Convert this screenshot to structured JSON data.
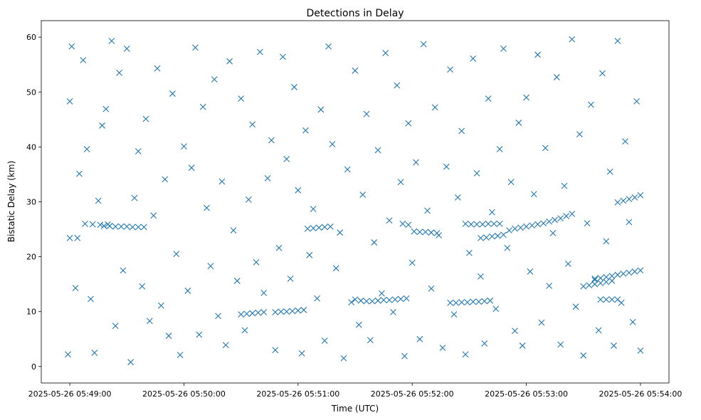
{
  "chart_data": {
    "type": "scatter",
    "title": "Detections in Delay",
    "xlabel": "Time (UTC)",
    "ylabel": "Bistatic Delay (km)",
    "x_start": "2025-05-26 05:49:00",
    "x_end": "2025-05-26 05:54:00",
    "xlim": [
      "2025-05-26 05:48:45",
      "2025-05-26 05:54:15"
    ],
    "ylim": [
      -3,
      63
    ],
    "x_ticks": [
      "2025-05-26 05:49:00",
      "2025-05-26 05:50:00",
      "2025-05-26 05:51:00",
      "2025-05-26 05:52:00",
      "2025-05-26 05:53:00",
      "2025-05-26 05:54:00"
    ],
    "y_ticks": [
      0,
      10,
      20,
      30,
      40,
      50,
      60
    ],
    "marker": "x",
    "color": "#1f77b4",
    "grid": false,
    "tracks": [
      {
        "x": [
          "2025-05-26 05:49:00",
          "2025-05-26 05:49:04",
          "2025-05-26 05:49:08",
          "2025-05-26 05:49:12",
          "2025-05-26 05:49:16",
          "2025-05-26 05:49:20"
        ],
        "y": [
          23.4,
          23.4,
          26.0,
          25.9,
          25.8,
          25.9
        ]
      },
      {
        "x": [
          "2025-05-26 05:49:18",
          "2025-05-26 05:49:21",
          "2025-05-26 05:49:24",
          "2025-05-26 05:49:27",
          "2025-05-26 05:49:30",
          "2025-05-26 05:49:33",
          "2025-05-26 05:49:36",
          "2025-05-26 05:49:39"
        ],
        "y": [
          25.6,
          25.6,
          25.5,
          25.5,
          25.5,
          25.4,
          25.4,
          25.4
        ]
      },
      {
        "x": [
          "2025-05-26 05:50:30",
          "2025-05-26 05:50:33",
          "2025-05-26 05:50:36",
          "2025-05-26 05:50:39",
          "2025-05-26 05:50:42"
        ],
        "y": [
          9.5,
          9.6,
          9.7,
          9.8,
          9.9
        ]
      },
      {
        "x": [
          "2025-05-26 05:50:48",
          "2025-05-26 05:50:51",
          "2025-05-26 05:50:54",
          "2025-05-26 05:50:57",
          "2025-05-26 05:51:00",
          "2025-05-26 05:51:03"
        ],
        "y": [
          9.9,
          10.0,
          10.0,
          10.1,
          10.2,
          10.3
        ]
      },
      {
        "x": [
          "2025-05-26 05:51:05",
          "2025-05-26 05:51:08",
          "2025-05-26 05:51:11",
          "2025-05-26 05:51:14",
          "2025-05-26 05:51:17"
        ],
        "y": [
          25.1,
          25.2,
          25.3,
          25.4,
          25.5
        ]
      },
      {
        "x": [
          "2025-05-26 05:51:30",
          "2025-05-26 05:51:33",
          "2025-05-26 05:51:36",
          "2025-05-26 05:51:39",
          "2025-05-26 05:51:42",
          "2025-05-26 05:51:45",
          "2025-05-26 05:51:48",
          "2025-05-26 05:51:51",
          "2025-05-26 05:51:54",
          "2025-05-26 05:51:57"
        ],
        "y": [
          12.2,
          12.0,
          11.9,
          11.9,
          12.0,
          12.1,
          12.1,
          12.2,
          12.3,
          12.4
        ]
      },
      {
        "x": [
          "2025-05-26 05:51:55",
          "2025-05-26 05:51:58",
          "2025-05-26 05:52:01",
          "2025-05-26 05:52:04",
          "2025-05-26 05:52:07",
          "2025-05-26 05:52:10",
          "2025-05-26 05:52:13"
        ],
        "y": [
          26.0,
          25.8,
          24.6,
          24.5,
          24.5,
          24.4,
          24.3
        ]
      },
      {
        "x": [
          "2025-05-26 05:52:20",
          "2025-05-26 05:52:23",
          "2025-05-26 05:52:26",
          "2025-05-26 05:52:29",
          "2025-05-26 05:52:32",
          "2025-05-26 05:52:35",
          "2025-05-26 05:52:38",
          "2025-05-26 05:52:41"
        ],
        "y": [
          11.6,
          11.6,
          11.7,
          11.7,
          11.8,
          11.8,
          11.9,
          12.0
        ]
      },
      {
        "x": [
          "2025-05-26 05:52:28",
          "2025-05-26 05:52:31",
          "2025-05-26 05:52:34",
          "2025-05-26 05:52:37",
          "2025-05-26 05:52:40",
          "2025-05-26 05:52:43",
          "2025-05-26 05:52:46"
        ],
        "y": [
          26.0,
          25.9,
          25.9,
          25.9,
          26.0,
          26.0,
          26.0
        ]
      },
      {
        "x": [
          "2025-05-26 05:52:36",
          "2025-05-26 05:52:39",
          "2025-05-26 05:52:42",
          "2025-05-26 05:52:45",
          "2025-05-26 05:52:48"
        ],
        "y": [
          23.4,
          23.5,
          23.7,
          23.8,
          24.0
        ]
      },
      {
        "x": [
          "2025-05-26 05:52:51",
          "2025-05-26 05:52:54",
          "2025-05-26 05:52:57",
          "2025-05-26 05:53:00",
          "2025-05-26 05:53:03",
          "2025-05-26 05:53:06",
          "2025-05-26 05:53:09",
          "2025-05-26 05:53:12",
          "2025-05-26 05:53:15",
          "2025-05-26 05:53:18",
          "2025-05-26 05:53:21",
          "2025-05-26 05:53:24"
        ],
        "y": [
          24.8,
          25.1,
          25.3,
          25.5,
          25.7,
          25.9,
          26.1,
          26.4,
          26.7,
          27.0,
          27.4,
          27.8
        ]
      },
      {
        "x": [
          "2025-05-26 05:53:30",
          "2025-05-26 05:53:33",
          "2025-05-26 05:53:36",
          "2025-05-26 05:53:39",
          "2025-05-26 05:53:42",
          "2025-05-26 05:53:45"
        ],
        "y": [
          14.6,
          14.8,
          15.0,
          15.2,
          15.4,
          15.6
        ]
      },
      {
        "x": [
          "2025-05-26 05:53:48",
          "2025-05-26 05:53:51",
          "2025-05-26 05:53:54",
          "2025-05-26 05:53:57",
          "2025-05-26 05:54:00"
        ],
        "y": [
          29.9,
          30.2,
          30.5,
          30.8,
          31.2
        ]
      },
      {
        "x": [
          "2025-05-26 05:53:36",
          "2025-05-26 05:53:39",
          "2025-05-26 05:53:42",
          "2025-05-26 05:53:45",
          "2025-05-26 05:53:48",
          "2025-05-26 05:53:51",
          "2025-05-26 05:53:54",
          "2025-05-26 05:53:57",
          "2025-05-26 05:54:00"
        ],
        "y": [
          16.0,
          16.1,
          16.3,
          16.5,
          16.7,
          16.9,
          17.1,
          17.3,
          17.5
        ]
      },
      {
        "x": [
          "2025-05-26 05:53:39",
          "2025-05-26 05:53:42",
          "2025-05-26 05:53:45",
          "2025-05-26 05:53:48"
        ],
        "y": [
          12.2,
          12.2,
          12.2,
          12.2
        ]
      }
    ],
    "points": {
      "x": [
        "2025-05-26 05:48:59",
        "2025-05-26 05:49:00",
        "2025-05-26 05:49:01",
        "2025-05-26 05:49:03",
        "2025-05-26 05:49:05",
        "2025-05-26 05:49:07",
        "2025-05-26 05:49:09",
        "2025-05-26 05:49:11",
        "2025-05-26 05:49:13",
        "2025-05-26 05:49:15",
        "2025-05-26 05:49:17",
        "2025-05-26 05:49:19",
        "2025-05-26 05:49:22",
        "2025-05-26 05:49:24",
        "2025-05-26 05:49:26",
        "2025-05-26 05:49:28",
        "2025-05-26 05:49:30",
        "2025-05-26 05:49:32",
        "2025-05-26 05:49:34",
        "2025-05-26 05:49:36",
        "2025-05-26 05:49:38",
        "2025-05-26 05:49:40",
        "2025-05-26 05:49:42",
        "2025-05-26 05:49:44",
        "2025-05-26 05:49:46",
        "2025-05-26 05:49:48",
        "2025-05-26 05:49:50",
        "2025-05-26 05:49:52",
        "2025-05-26 05:49:54",
        "2025-05-26 05:49:56",
        "2025-05-26 05:49:58",
        "2025-05-26 05:50:00",
        "2025-05-26 05:50:02",
        "2025-05-26 05:50:04",
        "2025-05-26 05:50:06",
        "2025-05-26 05:50:08",
        "2025-05-26 05:50:10",
        "2025-05-26 05:50:12",
        "2025-05-26 05:50:14",
        "2025-05-26 05:50:16",
        "2025-05-26 05:50:18",
        "2025-05-26 05:50:20",
        "2025-05-26 05:50:22",
        "2025-05-26 05:50:24",
        "2025-05-26 05:50:26",
        "2025-05-26 05:50:28",
        "2025-05-26 05:50:30",
        "2025-05-26 05:50:32",
        "2025-05-26 05:50:34",
        "2025-05-26 05:50:36",
        "2025-05-26 05:50:38",
        "2025-05-26 05:50:40",
        "2025-05-26 05:50:42",
        "2025-05-26 05:50:44",
        "2025-05-26 05:50:46",
        "2025-05-26 05:50:48",
        "2025-05-26 05:50:50",
        "2025-05-26 05:50:52",
        "2025-05-26 05:50:54",
        "2025-05-26 05:50:56",
        "2025-05-26 05:50:58",
        "2025-05-26 05:51:00",
        "2025-05-26 05:51:02",
        "2025-05-26 05:51:04",
        "2025-05-26 05:51:06",
        "2025-05-26 05:51:08",
        "2025-05-26 05:51:10",
        "2025-05-26 05:51:12",
        "2025-05-26 05:51:14",
        "2025-05-26 05:51:16",
        "2025-05-26 05:51:18",
        "2025-05-26 05:51:20",
        "2025-05-26 05:51:22",
        "2025-05-26 05:51:24",
        "2025-05-26 05:51:26",
        "2025-05-26 05:51:28",
        "2025-05-26 05:51:30",
        "2025-05-26 05:51:32",
        "2025-05-26 05:51:34",
        "2025-05-26 05:51:36",
        "2025-05-26 05:51:38",
        "2025-05-26 05:51:40",
        "2025-05-26 05:51:42",
        "2025-05-26 05:51:44",
        "2025-05-26 05:51:46",
        "2025-05-26 05:51:48",
        "2025-05-26 05:51:50",
        "2025-05-26 05:51:52",
        "2025-05-26 05:51:54",
        "2025-05-26 05:51:56",
        "2025-05-26 05:51:58",
        "2025-05-26 05:52:00",
        "2025-05-26 05:52:02",
        "2025-05-26 05:52:04",
        "2025-05-26 05:52:06",
        "2025-05-26 05:52:08",
        "2025-05-26 05:52:10",
        "2025-05-26 05:52:12",
        "2025-05-26 05:52:14",
        "2025-05-26 05:52:16",
        "2025-05-26 05:52:18",
        "2025-05-26 05:52:20",
        "2025-05-26 05:52:22",
        "2025-05-26 05:52:24",
        "2025-05-26 05:52:26",
        "2025-05-26 05:52:28",
        "2025-05-26 05:52:30",
        "2025-05-26 05:52:32",
        "2025-05-26 05:52:34",
        "2025-05-26 05:52:36",
        "2025-05-26 05:52:38",
        "2025-05-26 05:52:40",
        "2025-05-26 05:52:42",
        "2025-05-26 05:52:44",
        "2025-05-26 05:52:46",
        "2025-05-26 05:52:48",
        "2025-05-26 05:52:50",
        "2025-05-26 05:52:52",
        "2025-05-26 05:52:54",
        "2025-05-26 05:52:56",
        "2025-05-26 05:52:58",
        "2025-05-26 05:53:00",
        "2025-05-26 05:53:02",
        "2025-05-26 05:53:04",
        "2025-05-26 05:53:06",
        "2025-05-26 05:53:08",
        "2025-05-26 05:53:10",
        "2025-05-26 05:53:12",
        "2025-05-26 05:53:14",
        "2025-05-26 05:53:16",
        "2025-05-26 05:53:18",
        "2025-05-26 05:53:20",
        "2025-05-26 05:53:22",
        "2025-05-26 05:53:24",
        "2025-05-26 05:53:26",
        "2025-05-26 05:53:28",
        "2025-05-26 05:53:30",
        "2025-05-26 05:53:32",
        "2025-05-26 05:53:34",
        "2025-05-26 05:53:36",
        "2025-05-26 05:53:38",
        "2025-05-26 05:53:40",
        "2025-05-26 05:53:42",
        "2025-05-26 05:53:44",
        "2025-05-26 05:53:46",
        "2025-05-26 05:53:48",
        "2025-05-26 05:53:50",
        "2025-05-26 05:53:52",
        "2025-05-26 05:53:54",
        "2025-05-26 05:53:56",
        "2025-05-26 05:53:58",
        "2025-05-26 05:54:00"
      ],
      "y": [
        2.2,
        48.3,
        58.3,
        14.3,
        35.1,
        55.8,
        39.6,
        12.3,
        2.5,
        30.2,
        43.9,
        46.9,
        59.3,
        7.4,
        53.5,
        17.5,
        57.9,
        0.8,
        30.7,
        39.2,
        14.6,
        45.1,
        8.3,
        27.5,
        54.3,
        11.1,
        34.1,
        5.6,
        49.7,
        20.5,
        2.1,
        40.1,
        13.8,
        36.2,
        58.1,
        5.8,
        47.3,
        28.9,
        18.3,
        52.3,
        9.2,
        33.7,
        3.9,
        55.6,
        24.8,
        15.6,
        48.8,
        6.6,
        30.4,
        44.1,
        19.0,
        57.3,
        13.4,
        34.3,
        41.2,
        3.0,
        21.6,
        56.4,
        37.8,
        16.0,
        50.9,
        32.1,
        2.4,
        43.0,
        20.3,
        28.7,
        12.4,
        46.8,
        4.7,
        58.3,
        40.5,
        17.9,
        24.4,
        1.5,
        35.9,
        11.7,
        53.9,
        7.6,
        31.3,
        46.0,
        4.8,
        22.6,
        39.4,
        13.3,
        57.1,
        26.6,
        9.9,
        51.2,
        33.6,
        1.9,
        44.3,
        18.9,
        37.2,
        5.0,
        58.7,
        28.4,
        14.2,
        47.2,
        23.9,
        3.4,
        36.4,
        54.1,
        9.5,
        30.8,
        42.9,
        2.2,
        20.7,
        56.1,
        35.2,
        16.4,
        4.2,
        48.8,
        28.1,
        10.5,
        39.6,
        57.9,
        21.6,
        33.6,
        6.5,
        44.4,
        3.8,
        49.0,
        17.3,
        31.4,
        56.8,
        8.0,
        39.8,
        14.7,
        24.3,
        52.7,
        4.0,
        32.9,
        18.7,
        59.6,
        10.9,
        42.3,
        2.0,
        26.1,
        47.7,
        15.8,
        6.6,
        53.4,
        22.8,
        35.5,
        3.8,
        59.3,
        11.6,
        41.0,
        26.3,
        8.1,
        48.3,
        2.9
      ]
    }
  }
}
